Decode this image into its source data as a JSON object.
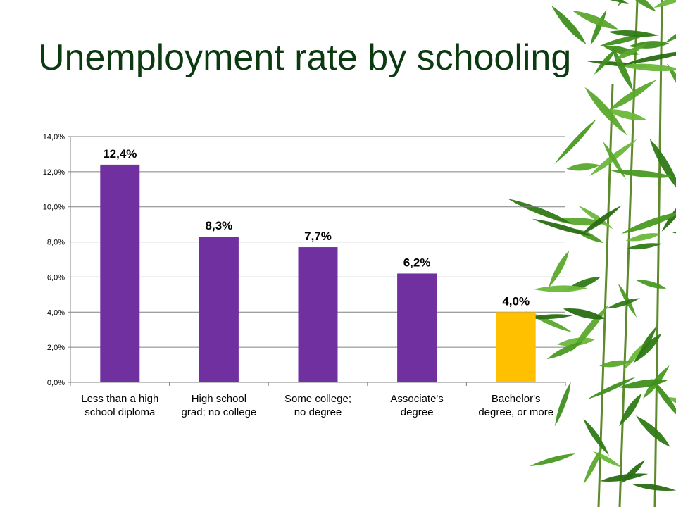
{
  "slide": {
    "title": "Unemployment rate by schooling"
  },
  "chart_data": {
    "type": "bar",
    "categories": [
      [
        "Less than a high",
        "school diploma"
      ],
      [
        "High school",
        "grad; no college"
      ],
      [
        "Some college;",
        "no degree"
      ],
      [
        "Associate's",
        "degree"
      ],
      [
        "Bachelor's",
        "degree, or more"
      ]
    ],
    "values": [
      12.4,
      8.3,
      7.7,
      6.2,
      4.0
    ],
    "data_labels": [
      "12,4%",
      "8,3%",
      "7,7%",
      "6,2%",
      "4,0%"
    ],
    "bar_colors": [
      "#7030a0",
      "#7030a0",
      "#7030a0",
      "#7030a0",
      "#ffc000"
    ],
    "ylim": [
      0,
      14
    ],
    "yticks": [
      0,
      2,
      4,
      6,
      8,
      10,
      12,
      14
    ],
    "ytick_labels": [
      "0,0%",
      "2,0%",
      "4,0%",
      "6,0%",
      "8,0%",
      "10,0%",
      "12,0%",
      "14,0%"
    ],
    "grid": true,
    "title": "",
    "xlabel": "",
    "ylabel": ""
  },
  "colors": {
    "title": "#0b3a10",
    "gridline": "#808080",
    "bamboo_leaf": "#3f8f1e"
  },
  "decoration": {
    "right_edge": "bamboo-leaves-icon"
  }
}
